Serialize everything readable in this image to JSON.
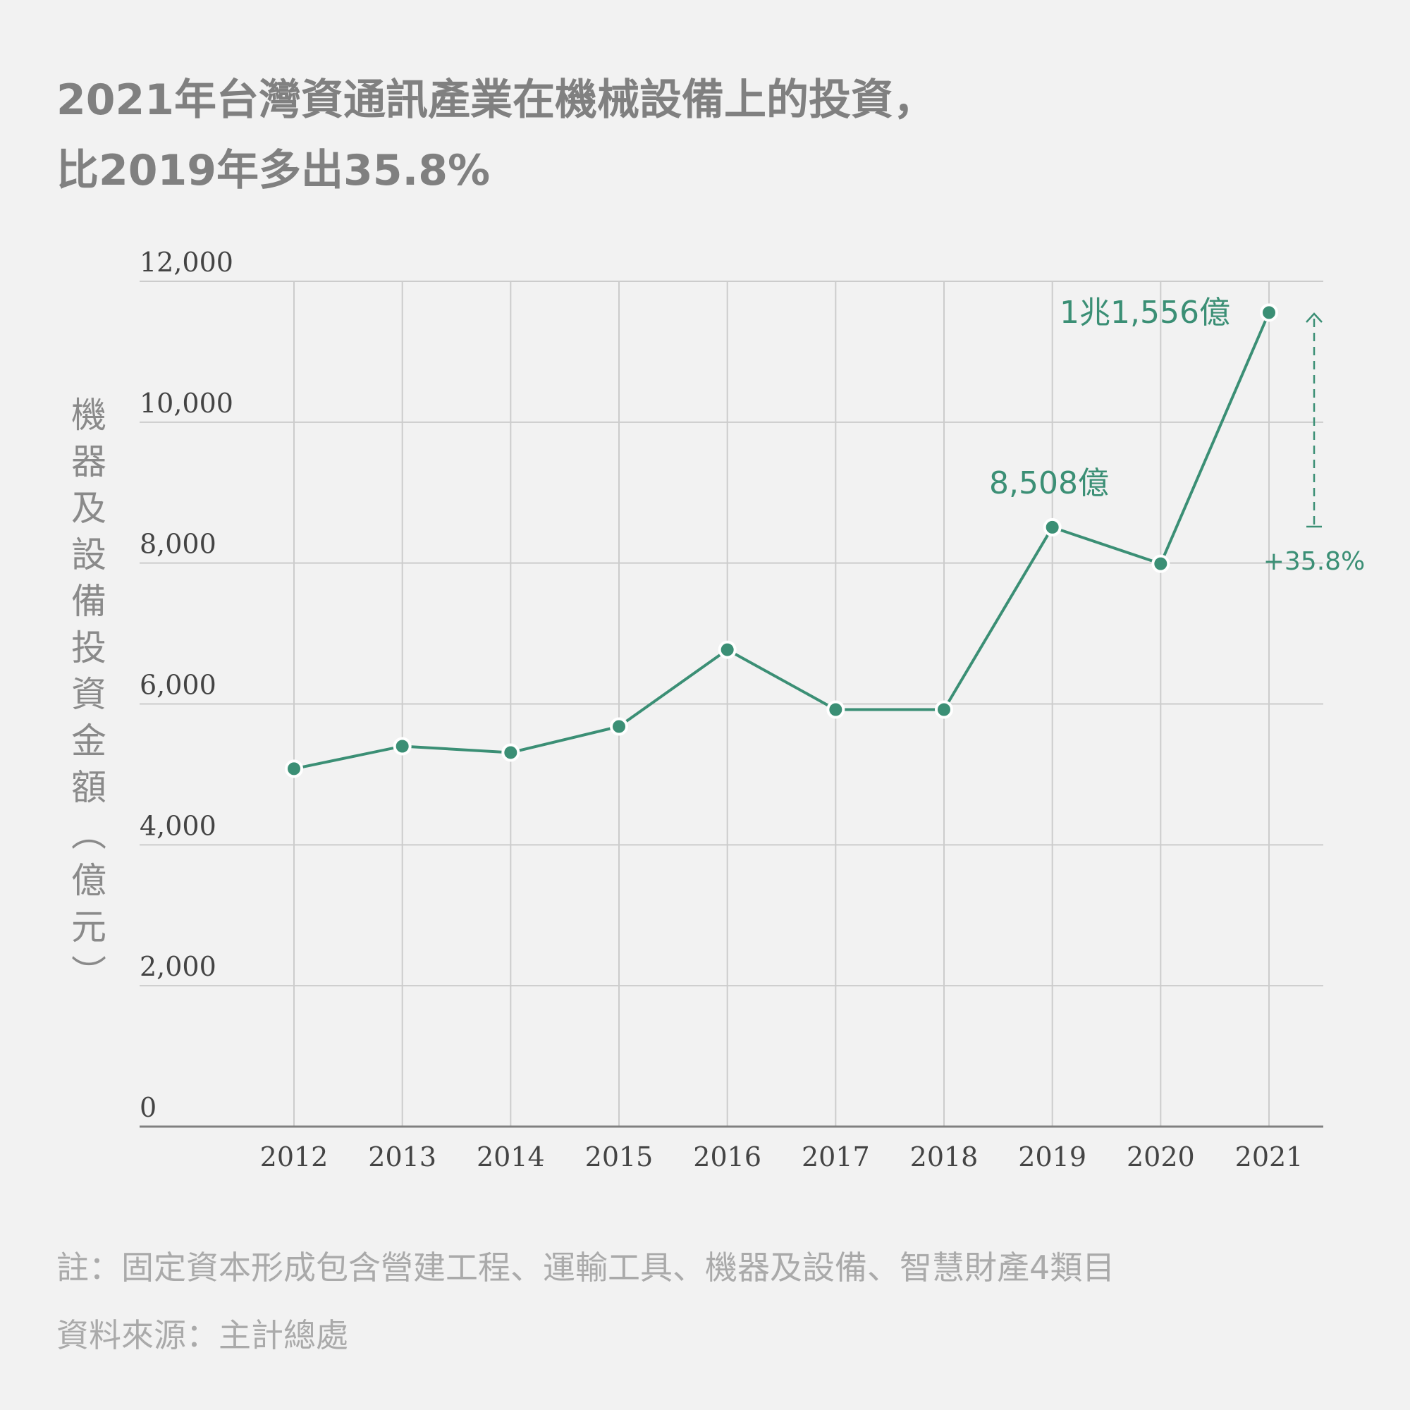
{
  "title": {
    "line1": "2021年台灣資通訊產業在機械設備上的投資，",
    "line2": "比2019年多出35.8%"
  },
  "y_axis_label_chars": [
    "機",
    "器",
    "及",
    "設",
    "備",
    "投",
    "資",
    "金",
    "額",
    "︵",
    "億",
    "元",
    "︶"
  ],
  "footer": {
    "note": "註：固定資本形成包含營建工程、運輸工具、機器及設備、智慧財產4類目",
    "source": "資料來源：主計總處"
  },
  "colors": {
    "background": "#f2f2f2",
    "line": "#3b8f75",
    "title": "#808080",
    "grid": "#cccccc",
    "axis": "#808080",
    "footer": "#aaaaaa"
  },
  "annotations": {
    "peak_2021": "1兆1,556億",
    "value_2019": "8,508億",
    "growth": "+35.8%"
  },
  "chart_data": {
    "type": "line",
    "title": "2021年台灣資通訊產業在機械設備上的投資，比2019年多出35.8%",
    "xlabel": "",
    "ylabel": "機器及設備投資金額（億元）",
    "categories": [
      "2012",
      "2013",
      "2014",
      "2015",
      "2016",
      "2017",
      "2018",
      "2019",
      "2020",
      "2021"
    ],
    "series": [
      {
        "name": "機器及設備投資金額（億元）",
        "values": [
          5080,
          5400,
          5310,
          5680,
          6770,
          5920,
          5920,
          8508,
          7990,
          11556
        ]
      }
    ],
    "y_ticks": [
      "0",
      "2,000",
      "4,000",
      "6,000",
      "8,000",
      "10,000",
      "12,000"
    ],
    "ylim": [
      0,
      12000
    ],
    "grid": true,
    "legend": "none",
    "annotations": [
      {
        "x": "2021",
        "text": "1兆1,556億"
      },
      {
        "x": "2019",
        "text": "8,508億"
      },
      {
        "type": "arrow",
        "from": 8508,
        "to": 11556,
        "text": "+35.8%"
      }
    ]
  }
}
